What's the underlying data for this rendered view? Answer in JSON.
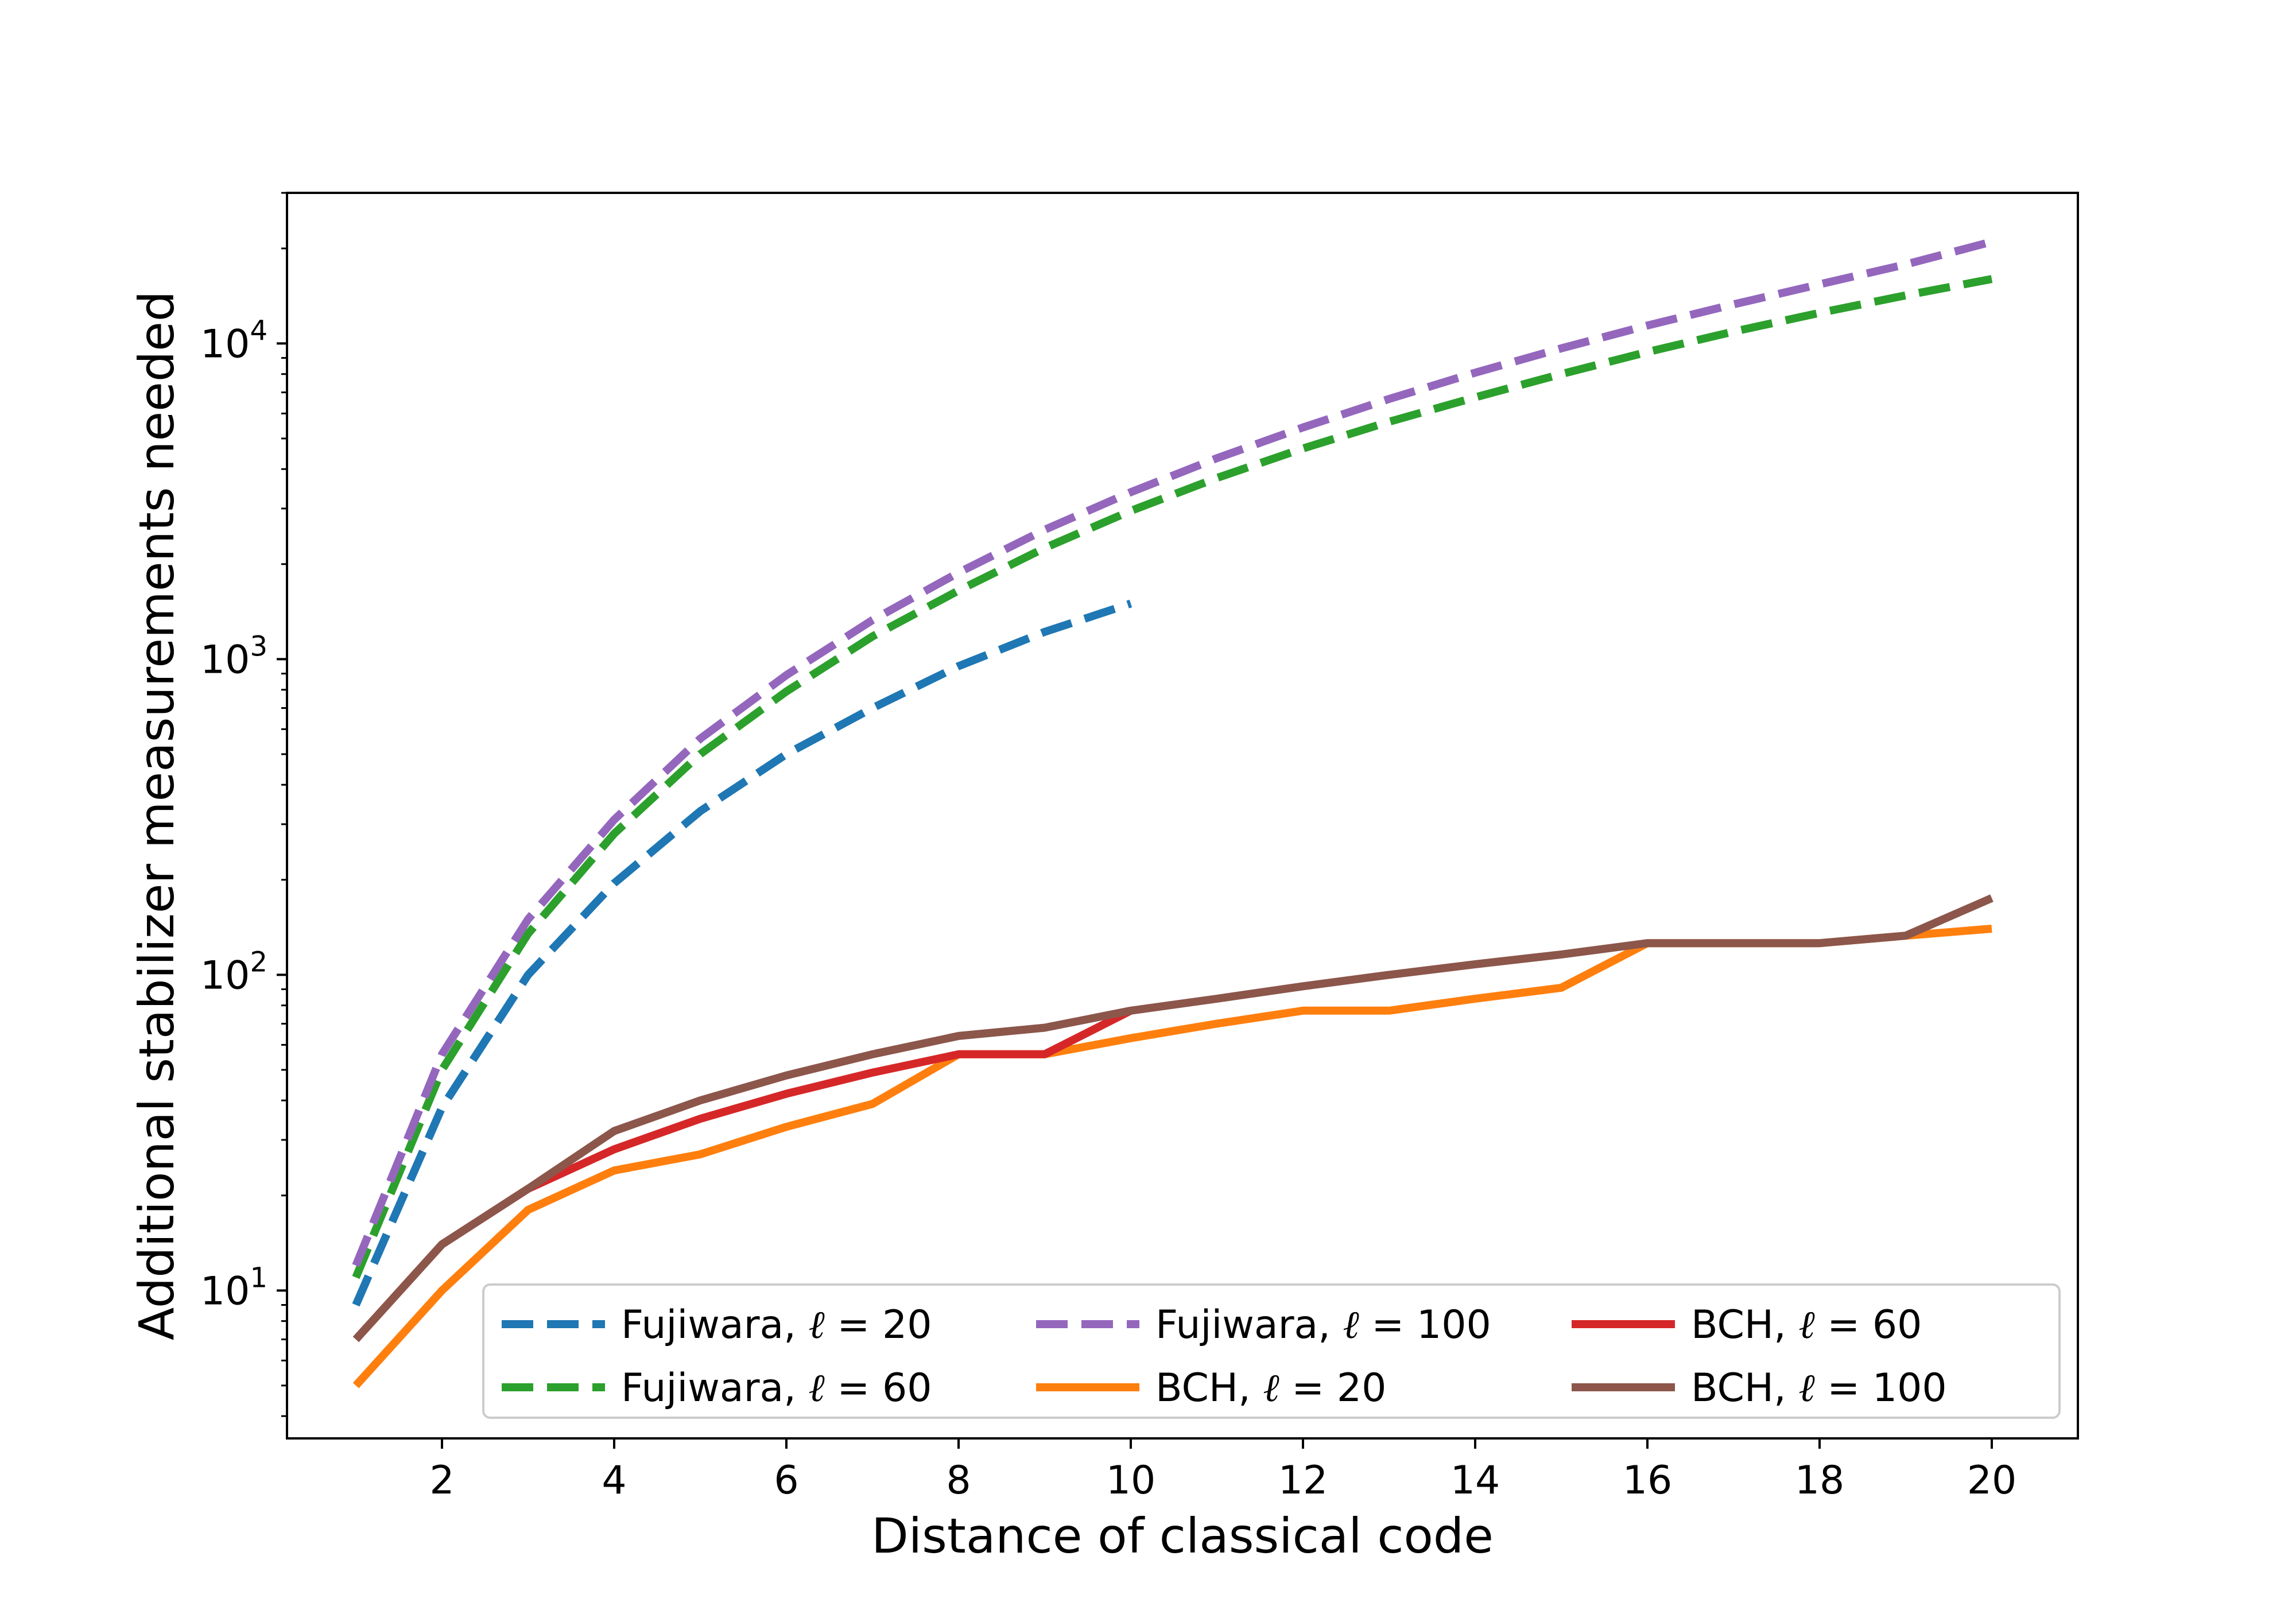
{
  "chart_data": {
    "type": "line",
    "title": "",
    "xlabel": "Distance of classical code",
    "ylabel": "Additional stabilizer measurements needed",
    "xlim": [
      0.2,
      21.0
    ],
    "ylim": [
      3.4,
      30000
    ],
    "yscale": "log",
    "grid": false,
    "legend_position": "lower-right",
    "x_ticks": [
      2,
      4,
      6,
      8,
      10,
      12,
      14,
      16,
      18,
      20
    ],
    "x_tick_labels": [
      "2",
      "4",
      "6",
      "8",
      "10",
      "12",
      "14",
      "16",
      "18",
      "20"
    ],
    "y_ticks": [
      10,
      100,
      1000,
      10000
    ],
    "y_tick_labels": [
      {
        "base": "10",
        "exp": "1"
      },
      {
        "base": "10",
        "exp": "2"
      },
      {
        "base": "10",
        "exp": "3"
      },
      {
        "base": "10",
        "exp": "4"
      }
    ],
    "series": [
      {
        "name": "Fujiwara, ℓ = 20",
        "label_prefix": "Fujiwara, ",
        "label_symbol": "ℓ",
        "label_suffix": " = 20",
        "color": "#1f77b4",
        "style": "dashed",
        "x": [
          1,
          2,
          3,
          4,
          5,
          6,
          7,
          8,
          9,
          10
        ],
        "values": [
          9,
          38,
          100,
          195,
          330,
          500,
          700,
          950,
          1220,
          1500
        ]
      },
      {
        "name": "BCH, ℓ = 20",
        "label_prefix": "BCH, ",
        "label_symbol": "ℓ",
        "label_suffix": " = 20",
        "color": "#ff7f0e",
        "style": "solid",
        "x": [
          1,
          2,
          3,
          4,
          5,
          6,
          7,
          8,
          9,
          10,
          11,
          12,
          13,
          14,
          15,
          16,
          17,
          18,
          19,
          20
        ],
        "values": [
          5,
          10,
          18,
          24,
          27,
          33,
          39,
          56,
          56,
          63,
          70,
          77,
          77,
          84,
          91,
          126,
          126,
          126,
          133,
          140
        ]
      },
      {
        "name": "Fujiwara, ℓ = 60",
        "label_prefix": "Fujiwara, ",
        "label_symbol": "ℓ",
        "label_suffix": " = 60",
        "color": "#2ca02c",
        "style": "dashed",
        "x": [
          1,
          2,
          3,
          4,
          5,
          6,
          7,
          8,
          9,
          10,
          11,
          12,
          13,
          14,
          15,
          16,
          17,
          18,
          19,
          20
        ],
        "values": [
          11,
          50,
          135,
          280,
          500,
          790,
          1180,
          1650,
          2250,
          2950,
          3750,
          4650,
          5650,
          6750,
          8000,
          9400,
          10900,
          12500,
          14200,
          16000
        ]
      },
      {
        "name": "BCH, ℓ = 60",
        "label_prefix": "BCH, ",
        "label_symbol": "ℓ",
        "label_suffix": " = 60",
        "color": "#d62728",
        "style": "solid",
        "x": [
          1,
          2,
          3,
          4,
          5,
          6,
          7,
          8,
          9,
          10
        ],
        "values": [
          7,
          14,
          21,
          28,
          35,
          42,
          49,
          56,
          56,
          77
        ]
      },
      {
        "name": "Fujiwara, ℓ = 100",
        "label_prefix": "Fujiwara, ",
        "label_symbol": "ℓ",
        "label_suffix": " = 100",
        "color": "#9467bd",
        "style": "dashed",
        "x": [
          1,
          2,
          3,
          4,
          5,
          6,
          7,
          8,
          9,
          10,
          11,
          12,
          13,
          14,
          15,
          16,
          17,
          18,
          19,
          20
        ],
        "values": [
          12,
          56,
          150,
          310,
          560,
          890,
          1330,
          1880,
          2570,
          3380,
          4330,
          5420,
          6670,
          8080,
          9650,
          11400,
          13300,
          15400,
          17800,
          21000
        ]
      },
      {
        "name": "BCH, ℓ = 100",
        "label_prefix": "BCH, ",
        "label_symbol": "ℓ",
        "label_suffix": " = 100",
        "color": "#8c564b",
        "style": "solid",
        "x": [
          1,
          2,
          3,
          4,
          5,
          6,
          7,
          8,
          9,
          10,
          11,
          12,
          13,
          14,
          15,
          16,
          17,
          18,
          19,
          20
        ],
        "values": [
          7,
          14,
          21,
          32,
          40,
          48,
          56,
          64,
          68,
          77,
          84,
          92,
          100,
          108,
          116,
          126,
          126,
          126,
          133,
          175
        ]
      }
    ],
    "legend_order": [
      0,
      2,
      4,
      1,
      3,
      5
    ]
  }
}
